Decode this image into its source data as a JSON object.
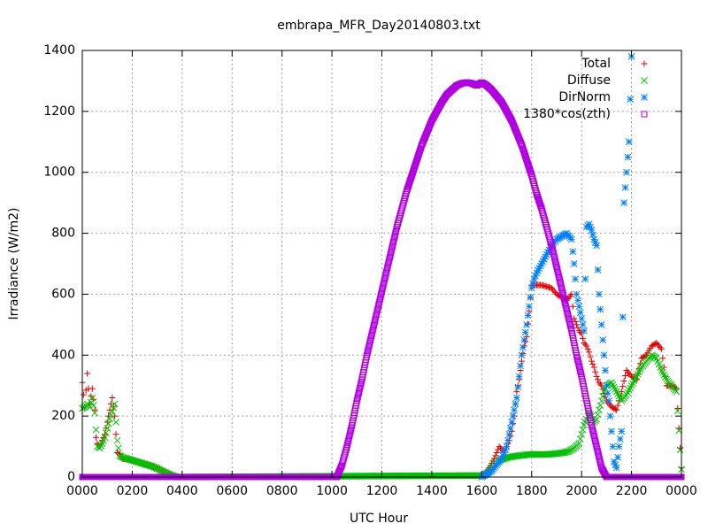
{
  "chart_data": {
    "type": "scatter",
    "title": "embrapa_MFR_Day20140803.txt",
    "xlabel": "UTC Hour",
    "ylabel": "Irradiance (W/m2)",
    "xlim": [
      0,
      24
    ],
    "ylim": [
      0,
      1400
    ],
    "grid": true,
    "legend_position": "top-right",
    "x_tick_values": [
      0,
      2,
      4,
      6,
      8,
      10,
      12,
      14,
      16,
      18,
      20,
      22,
      24
    ],
    "x_tick_labels": [
      "0000",
      "0200",
      "0400",
      "0600",
      "0800",
      "1000",
      "1200",
      "1400",
      "1600",
      "1800",
      "2000",
      "2200",
      "0000"
    ],
    "y_tick_values": [
      0,
      200,
      400,
      600,
      800,
      1000,
      1200,
      1400
    ],
    "y_tick_labels": [
      "0",
      "200",
      "400",
      "600",
      "800",
      "1000",
      "1200",
      "1400"
    ],
    "series": [
      {
        "name": "Total",
        "marker": "plus",
        "color": "#e00000",
        "x": [
          0.0,
          0.1,
          0.2,
          0.3,
          0.4,
          0.5,
          0.55,
          0.6,
          0.7,
          0.8,
          0.9,
          1.0,
          1.1,
          1.2,
          1.3,
          1.4,
          1.5,
          1.6,
          1.8,
          2.0,
          2.2,
          2.4,
          2.6,
          2.8,
          3.0,
          3.2,
          3.4,
          3.6,
          3.8,
          16.1,
          16.3,
          16.5,
          16.7,
          16.9,
          17.1,
          17.2,
          17.3,
          17.4,
          17.5,
          17.6,
          17.7,
          17.8,
          18.0,
          18.2,
          18.4,
          18.6,
          18.8,
          19.0,
          19.2,
          19.4,
          19.6,
          19.7,
          19.8,
          19.9,
          20.0,
          20.1,
          20.2,
          20.3,
          20.4,
          20.5,
          20.6,
          20.7,
          20.8,
          21.0,
          21.2,
          21.4,
          21.6,
          21.8,
          22.0,
          22.2,
          22.4,
          22.6,
          22.8,
          23.0,
          23.2,
          23.4,
          23.6,
          23.8,
          24.0
        ],
        "y": [
          310,
          230,
          340,
          240,
          290,
          220,
          130,
          110,
          100,
          120,
          140,
          180,
          220,
          260,
          200,
          80,
          75,
          60,
          58,
          55,
          50,
          45,
          40,
          35,
          28,
          20,
          12,
          5,
          0,
          5,
          30,
          60,
          100,
          80,
          120,
          150,
          200,
          280,
          320,
          380,
          430,
          460,
          630,
          630,
          630,
          625,
          620,
          600,
          590,
          580,
          600,
          520,
          500,
          480,
          470,
          440,
          430,
          410,
          380,
          360,
          330,
          310,
          300,
          250,
          230,
          220,
          280,
          350,
          330,
          320,
          390,
          400,
          430,
          440,
          420,
          300,
          300,
          290,
          30
        ],
        "_note": ""
      },
      {
        "name": "Diffuse",
        "marker": "cross",
        "color": "#00c000",
        "x": [
          0.0,
          0.1,
          0.2,
          0.3,
          0.4,
          0.5,
          0.6,
          0.7,
          0.8,
          0.9,
          1.0,
          1.1,
          1.2,
          1.3,
          1.4,
          1.5,
          1.6,
          1.8,
          2.0,
          2.2,
          2.4,
          2.6,
          2.8,
          3.0,
          3.2,
          3.4,
          3.6,
          3.8,
          16.1,
          16.3,
          16.5,
          16.7,
          16.9,
          17.1,
          17.3,
          17.5,
          17.7,
          17.9,
          18.1,
          18.3,
          18.5,
          18.7,
          18.9,
          19.1,
          19.3,
          19.5,
          19.7,
          19.9,
          20.0,
          20.1,
          20.2,
          20.3,
          20.4,
          20.5,
          20.6,
          20.7,
          20.8,
          20.9,
          21.0,
          21.2,
          21.4,
          21.6,
          21.8,
          22.0,
          22.2,
          22.4,
          22.6,
          22.8,
          23.0,
          23.2,
          23.4,
          23.6,
          23.8,
          24.0
        ],
        "y": [
          225,
          230,
          240,
          230,
          260,
          210,
          100,
          95,
          110,
          130,
          160,
          190,
          215,
          240,
          120,
          70,
          65,
          60,
          55,
          50,
          45,
          40,
          35,
          28,
          20,
          12,
          5,
          0,
          5,
          20,
          40,
          55,
          60,
          65,
          68,
          70,
          72,
          74,
          75,
          74,
          74,
          75,
          76,
          78,
          80,
          85,
          95,
          110,
          140,
          170,
          190,
          210,
          200,
          180,
          190,
          220,
          250,
          280,
          300,
          310,
          280,
          250,
          270,
          300,
          330,
          360,
          380,
          400,
          390,
          350,
          320,
          300,
          280,
          25
        ]
      },
      {
        "name": "DirNorm",
        "marker": "star",
        "color": "#0080ff",
        "x": [
          16.0,
          16.2,
          16.4,
          16.6,
          16.8,
          17.0,
          17.2,
          17.4,
          17.5,
          17.6,
          17.7,
          17.8,
          17.9,
          18.0,
          18.1,
          18.2,
          18.4,
          18.6,
          18.8,
          19.0,
          19.2,
          19.4,
          19.6,
          19.7,
          19.8,
          19.9,
          20.0,
          20.1,
          20.2,
          20.3,
          20.4,
          20.5,
          20.6,
          20.7,
          20.8,
          20.9,
          21.0,
          21.1,
          21.2,
          21.3,
          21.4,
          21.5,
          21.6,
          21.7,
          21.8,
          21.9,
          22.0
        ],
        "y": [
          0,
          10,
          20,
          40,
          60,
          100,
          180,
          260,
          330,
          400,
          450,
          500,
          560,
          620,
          650,
          670,
          700,
          730,
          760,
          780,
          790,
          800,
          780,
          700,
          600,
          560,
          520,
          480,
          820,
          830,
          810,
          780,
          760,
          600,
          500,
          400,
          300,
          250,
          150,
          50,
          30,
          100,
          150,
          900,
          1000,
          1100,
          1380
        ]
      },
      {
        "name": "1380*cos(zth)",
        "marker": "square",
        "color": "#b000e0",
        "x": [
          0,
          1,
          2,
          3,
          4,
          5,
          6,
          7,
          8,
          9,
          10.0,
          10.2,
          10.4,
          10.6,
          10.8,
          11.0,
          11.2,
          11.4,
          11.6,
          11.8,
          12.0,
          12.2,
          12.4,
          12.6,
          12.8,
          13.0,
          13.2,
          13.4,
          13.6,
          13.8,
          14.0,
          14.2,
          14.4,
          14.6,
          14.8,
          15.0,
          15.2,
          15.4,
          15.6,
          15.8,
          16.0,
          16.2,
          16.4,
          16.6,
          16.8,
          17.0,
          17.2,
          17.4,
          17.6,
          17.8,
          18.0,
          18.2,
          18.4,
          18.6,
          18.8,
          19.0,
          19.2,
          19.4,
          19.6,
          19.8,
          20.0,
          20.2,
          20.4,
          20.6,
          20.8,
          21.0,
          21.2,
          21.4,
          21.6,
          21.8,
          22.0,
          22.2,
          23,
          24
        ],
        "y": [
          0,
          0,
          0,
          0,
          0,
          0,
          0,
          0,
          0,
          0,
          0,
          0,
          40,
          100,
          170,
          250,
          320,
          400,
          470,
          540,
          610,
          680,
          750,
          820,
          880,
          940,
          990,
          1040,
          1090,
          1130,
          1170,
          1200,
          1230,
          1255,
          1270,
          1285,
          1292,
          1295,
          1292,
          1285,
          1295,
          1285,
          1270,
          1250,
          1230,
          1200,
          1170,
          1130,
          1090,
          1040,
          990,
          930,
          880,
          820,
          760,
          690,
          620,
          550,
          480,
          400,
          330,
          250,
          170,
          100,
          30,
          0,
          0,
          0,
          0,
          0,
          0,
          0,
          0,
          0
        ]
      }
    ]
  }
}
